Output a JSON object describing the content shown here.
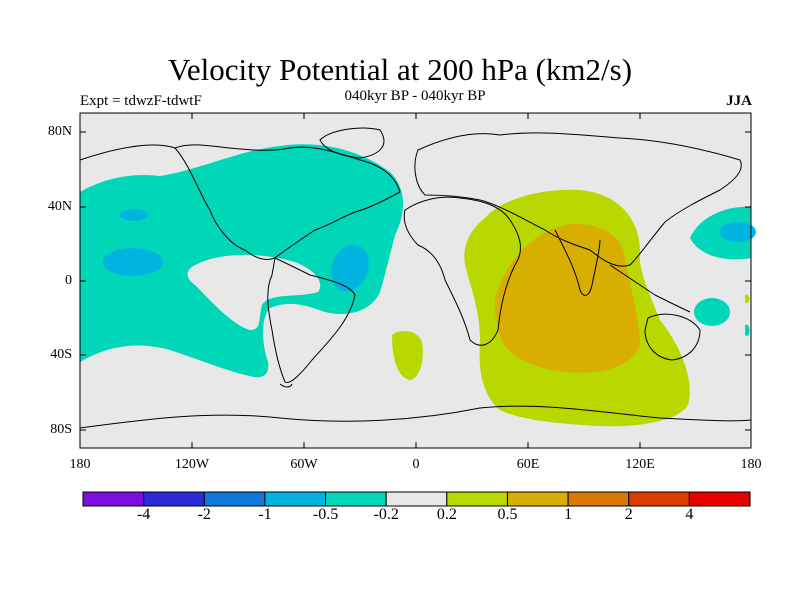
{
  "header": {
    "title": "Velocity Potential at 200 hPa (km2/s)",
    "subtitle": "040kyr BP - 040kyr BP",
    "experiment": "Expt = tdwzF-tdwtF",
    "season": "JJA"
  },
  "axes": {
    "lat_labels": [
      "80N",
      "40N",
      "0",
      "40S",
      "80S"
    ],
    "lon_labels": [
      "180",
      "120W",
      "60W",
      "0",
      "60E",
      "120E",
      "180"
    ]
  },
  "colorbar": {
    "colors": [
      "#7b0fdc",
      "#2a2ad6",
      "#0d78dc",
      "#00b4e0",
      "#00d6b8",
      "#e8e8e8",
      "#b8d800",
      "#d8ae00",
      "#dc7800",
      "#dc3c00",
      "#e80000"
    ],
    "labels": [
      "-4",
      "-2",
      "-1",
      "-0.5",
      "-0.2",
      "0.2",
      "0.5",
      "1",
      "2",
      "4"
    ]
  },
  "colors": {
    "background": "#e8e8e8",
    "neg_weak": "#00d6b8",
    "neg_mid": "#00b4e0",
    "pos_weak": "#b8d800",
    "pos_mid": "#d8ae00"
  }
}
